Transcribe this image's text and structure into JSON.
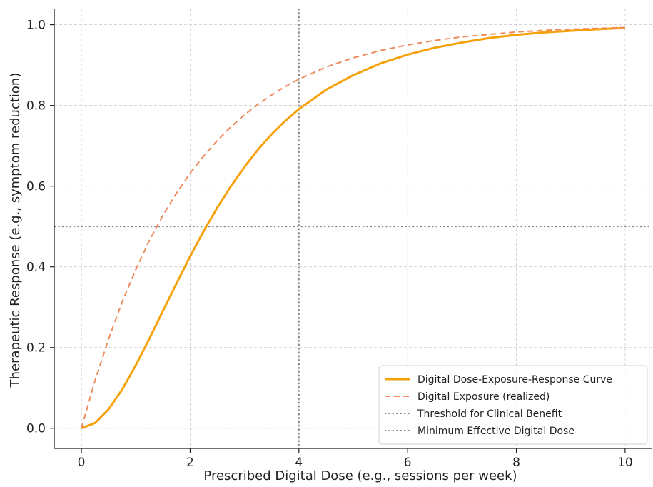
{
  "chart_data": {
    "type": "line",
    "title": "",
    "xlabel": "Prescribed Digital Dose (e.g., sessions per week)",
    "ylabel": "Therapeutic Response (e.g., symptom reduction)",
    "xlim": [
      -0.5,
      10.5
    ],
    "ylim": [
      -0.05,
      1.04
    ],
    "xticks": [
      "0",
      "2",
      "4",
      "6",
      "8",
      "10"
    ],
    "yticks": [
      "0.0",
      "0.2",
      "0.4",
      "0.6",
      "0.8",
      "1.0"
    ],
    "grid": true,
    "legend_position": "lower-right",
    "series": [
      {
        "name": "Digital Dose-Exposure-Response Curve",
        "style": "solid",
        "color": "#f5a20a",
        "x": [
          0,
          0.25,
          0.5,
          0.75,
          1,
          1.25,
          1.5,
          1.75,
          2,
          2.25,
          2.5,
          2.75,
          3,
          3.25,
          3.5,
          3.75,
          4,
          4.5,
          5,
          5.5,
          6,
          6.5,
          7,
          7.5,
          8,
          8.5,
          9,
          9.5,
          10
        ],
        "y": [
          0,
          0.013,
          0.047,
          0.096,
          0.156,
          0.222,
          0.291,
          0.359,
          0.426,
          0.489,
          0.547,
          0.6,
          0.648,
          0.691,
          0.729,
          0.762,
          0.791,
          0.839,
          0.875,
          0.904,
          0.926,
          0.943,
          0.956,
          0.967,
          0.975,
          0.981,
          0.985,
          0.989,
          0.992
        ]
      },
      {
        "name": "Digital Exposure (realized)",
        "style": "dashed",
        "color": "#ee8a5c",
        "x": [
          0,
          0.25,
          0.5,
          0.75,
          1,
          1.25,
          1.5,
          1.75,
          2,
          2.25,
          2.5,
          2.75,
          3,
          3.25,
          3.5,
          3.75,
          4,
          4.5,
          5,
          5.5,
          6,
          6.5,
          7,
          7.5,
          8,
          8.5,
          9,
          9.5,
          10
        ],
        "y": [
          0,
          0.118,
          0.221,
          0.313,
          0.393,
          0.465,
          0.528,
          0.583,
          0.632,
          0.675,
          0.713,
          0.747,
          0.777,
          0.803,
          0.826,
          0.847,
          0.865,
          0.895,
          0.918,
          0.936,
          0.95,
          0.961,
          0.97,
          0.976,
          0.982,
          0.986,
          0.989,
          0.991,
          0.993
        ]
      },
      {
        "name": "Threshold for Clinical Benefit",
        "style": "dotted",
        "color": "#808080",
        "orientation": "horizontal",
        "value": 0.5
      },
      {
        "name": "Minimum Effective Digital Dose",
        "style": "dotted",
        "color": "#808080",
        "orientation": "vertical",
        "value": 4
      }
    ]
  }
}
